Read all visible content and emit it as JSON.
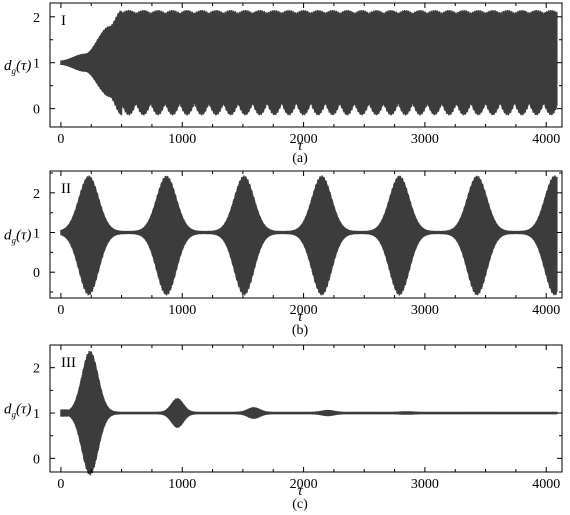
{
  "chart_data": [
    {
      "type": "line",
      "panel_label": "I",
      "caption": "(a)",
      "xlabel": "τ",
      "ylabel": "d_g(τ)",
      "xlim": [
        -90,
        4130
      ],
      "ylim": [
        -0.4,
        2.3
      ],
      "xticks": [
        0,
        1000,
        2000,
        3000,
        4000
      ],
      "yticks": [
        0,
        1,
        2
      ],
      "color": "#3c3c3c",
      "envelope": {
        "baseline": 1.0,
        "description_points": [
          {
            "x": 0,
            "upper": 1.05,
            "lower": 0.95
          },
          {
            "x": 200,
            "upper": 1.2,
            "lower": 0.8
          },
          {
            "x": 400,
            "upper": 1.8,
            "lower": 0.25
          },
          {
            "x": 500,
            "upper": 2.15,
            "lower": -0.15
          },
          {
            "x": 4100,
            "upper": 2.15,
            "lower": -0.15
          }
        ],
        "lower_ripple_period": 120
      }
    },
    {
      "type": "line",
      "panel_label": "II",
      "caption": "(b)",
      "xlabel": "τ",
      "ylabel": "d_g(τ)",
      "xlim": [
        -90,
        4130
      ],
      "ylim": [
        -0.65,
        2.55
      ],
      "xticks": [
        0,
        1000,
        2000,
        3000,
        4000
      ],
      "yticks": [
        0,
        1,
        2
      ],
      "color": "#3c3c3c",
      "envelope": {
        "baseline": 1.0,
        "burst_centers": [
          230,
          870,
          1510,
          2150,
          2790,
          3430,
          4070
        ],
        "burst_upper": 2.4,
        "burst_lower": -0.55,
        "burst_width": 130
      }
    },
    {
      "type": "line",
      "panel_label": "III",
      "caption": "(c)",
      "xlabel": "τ",
      "ylabel": "d_g(τ)",
      "xlim": [
        -90,
        4130
      ],
      "ylim": [
        -0.3,
        2.5
      ],
      "xticks": [
        0,
        1000,
        2000,
        3000,
        4000
      ],
      "yticks": [
        0,
        1,
        2
      ],
      "color": "#3c3c3c",
      "envelope": {
        "baseline": 1.0,
        "bursts": [
          {
            "center": 240,
            "amplitude": 1.35,
            "width": 110
          },
          {
            "center": 960,
            "amplitude": 0.3,
            "width": 80
          },
          {
            "center": 1590,
            "amplitude": 0.1,
            "width": 80
          },
          {
            "center": 2200,
            "amplitude": 0.04,
            "width": 80
          },
          {
            "center": 2850,
            "amplitude": 0.01,
            "width": 80
          }
        ]
      }
    }
  ]
}
